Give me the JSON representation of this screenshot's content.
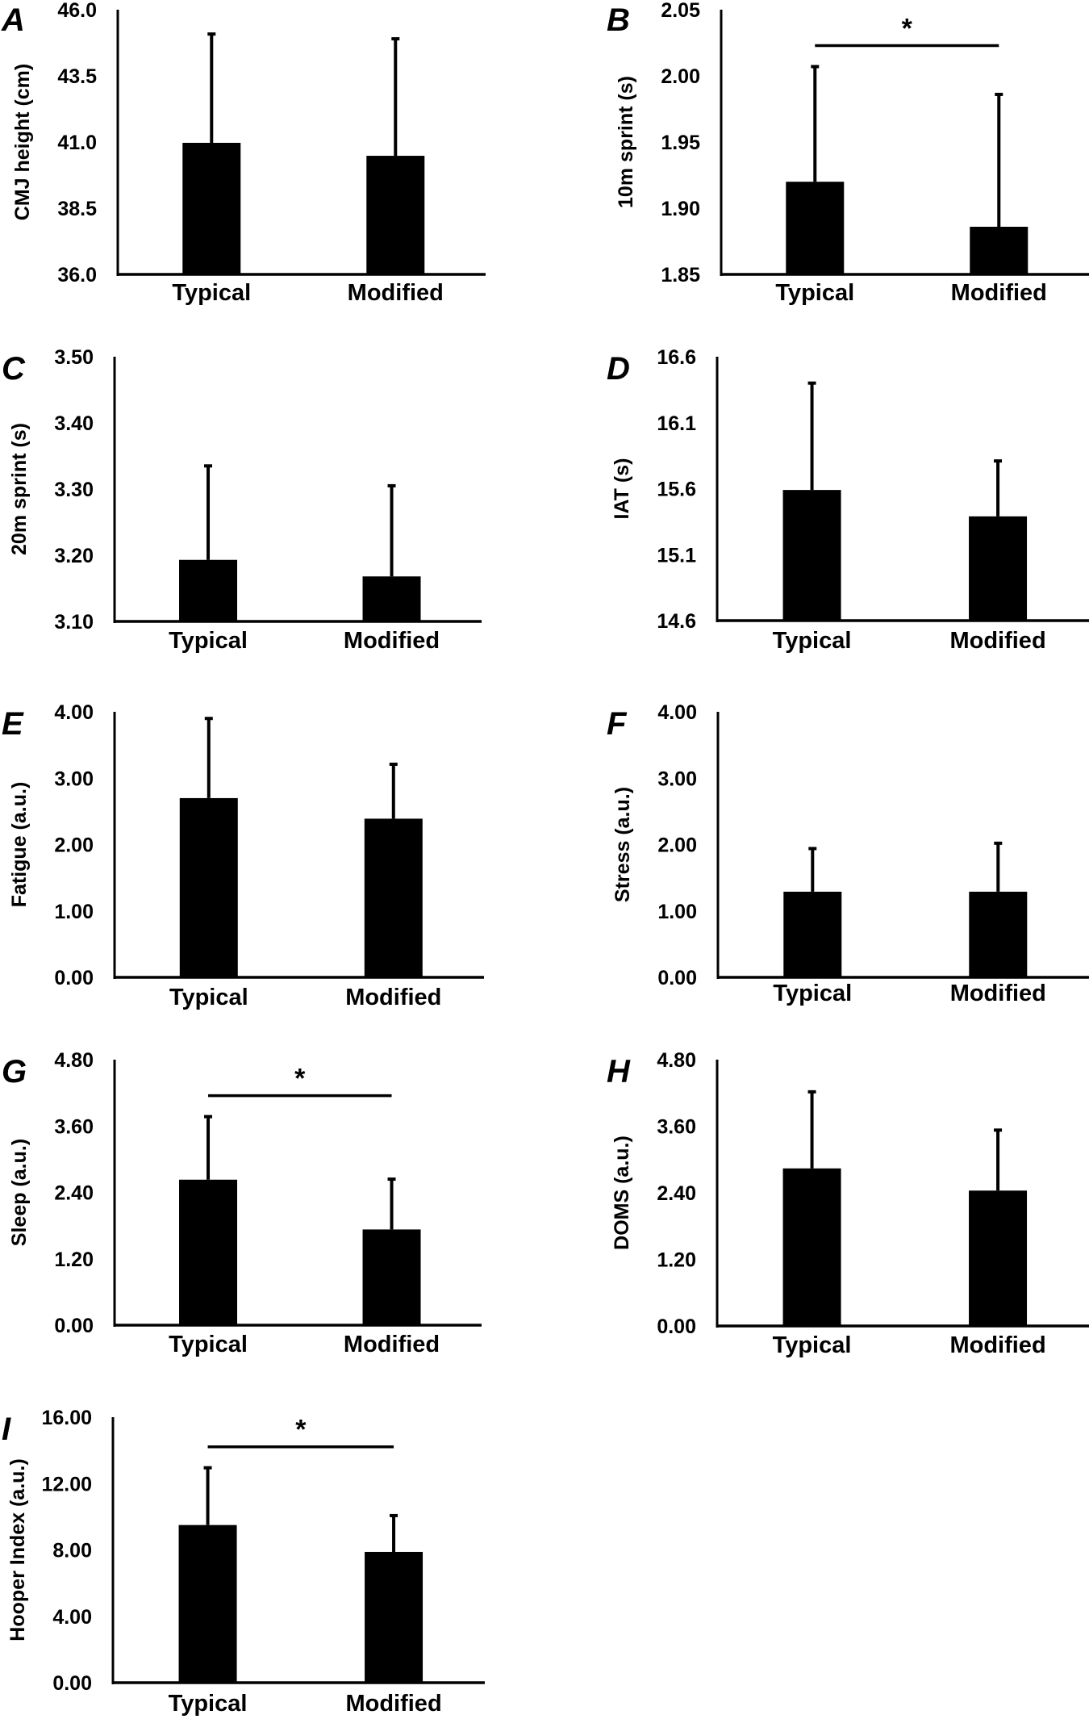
{
  "chart_data": [
    {
      "panel": "A",
      "type": "bar",
      "categories": [
        "Typical",
        "Modified"
      ],
      "values": [
        40.97,
        40.48
      ],
      "error_upper": [
        45.08,
        44.9
      ],
      "ylabel": "CMJ height (cm)",
      "ylim": [
        36.0,
        46.0
      ],
      "yticks": [
        "36.0",
        "38.5",
        "41.0",
        "43.5",
        "46.0"
      ],
      "significant": false
    },
    {
      "panel": "B",
      "type": "bar",
      "categories": [
        "Typical",
        "Modified"
      ],
      "values": [
        1.92,
        1.886
      ],
      "error_upper": [
        2.007,
        1.986
      ],
      "ylabel": "10m sprint (s)",
      "ylim": [
        1.85,
        2.05
      ],
      "yticks": [
        "1.85",
        "1.90",
        "1.95",
        "2.00",
        "2.05"
      ],
      "significant": true,
      "sig_marker": "*"
    },
    {
      "panel": "C",
      "type": "bar",
      "categories": [
        "Typical",
        "Modified"
      ],
      "values": [
        3.193,
        3.168
      ],
      "error_upper": [
        3.335,
        3.305
      ],
      "ylabel": "20m sprint (s)",
      "ylim": [
        3.1,
        3.5
      ],
      "yticks": [
        "3.10",
        "3.20",
        "3.30",
        "3.40",
        "3.50"
      ],
      "significant": false
    },
    {
      "panel": "D",
      "type": "bar",
      "categories": [
        "Typical",
        "Modified"
      ],
      "values": [
        15.59,
        15.39
      ],
      "error_upper": [
        16.4,
        15.81
      ],
      "ylabel": "IAT (s)",
      "ylim": [
        14.6,
        16.6
      ],
      "yticks": [
        "14.6",
        "15.1",
        "15.6",
        "16.1",
        "16.6"
      ],
      "significant": false
    },
    {
      "panel": "E",
      "type": "bar",
      "categories": [
        "Typical",
        "Modified"
      ],
      "values": [
        2.7,
        2.39
      ],
      "error_upper": [
        3.9,
        3.21
      ],
      "ylabel": "Fatigue (a.u.)",
      "ylim": [
        0.0,
        4.0
      ],
      "yticks": [
        "0.00",
        "1.00",
        "2.00",
        "3.00",
        "4.00"
      ],
      "significant": false
    },
    {
      "panel": "F",
      "type": "bar",
      "categories": [
        "Typical",
        "Modified"
      ],
      "values": [
        1.29,
        1.29
      ],
      "error_upper": [
        1.94,
        2.02
      ],
      "ylabel": "Stress (a.u.)",
      "ylim": [
        0.0,
        4.0
      ],
      "yticks": [
        "0.00",
        "1.00",
        "2.00",
        "3.00",
        "4.00"
      ],
      "significant": false
    },
    {
      "panel": "G",
      "type": "bar",
      "categories": [
        "Typical",
        "Modified"
      ],
      "values": [
        2.63,
        1.73
      ],
      "error_upper": [
        3.77,
        2.64
      ],
      "ylabel": "Sleep (a.u.)",
      "ylim": [
        0.0,
        4.8
      ],
      "yticks": [
        "0.00",
        "1.20",
        "2.40",
        "3.60",
        "4.80"
      ],
      "significant": true,
      "sig_marker": "*"
    },
    {
      "panel": "H",
      "type": "bar",
      "categories": [
        "Typical",
        "Modified"
      ],
      "values": [
        2.84,
        2.44
      ],
      "error_upper": [
        4.22,
        3.53
      ],
      "ylabel": "DOMS (a.u.)",
      "ylim": [
        0.0,
        4.8
      ],
      "yticks": [
        "0.00",
        "1.20",
        "2.40",
        "3.60",
        "4.80"
      ],
      "significant": false
    },
    {
      "panel": "I",
      "type": "bar",
      "categories": [
        "Typical",
        "Modified"
      ],
      "values": [
        9.5,
        7.88
      ],
      "error_upper": [
        12.95,
        10.07
      ],
      "ylabel": "Hooper Index (a.u.)",
      "ylim": [
        0.0,
        16.0
      ],
      "yticks": [
        "0.00",
        "4.00",
        "8.00",
        "12.00",
        "16.00"
      ],
      "significant": true,
      "sig_marker": "*"
    }
  ],
  "colors": {
    "bar": "#000000",
    "axis": "#000000",
    "background": "#ffffff"
  }
}
